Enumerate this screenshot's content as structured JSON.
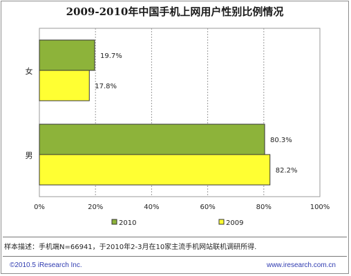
{
  "title": "2009-2010年中国手机上网用户性别比例情况",
  "note": "样本描述：手机端N=66941，于2010年2-3月在10家主流手机网站联机调研所得.",
  "copyright": "©2010.5 iResearch Inc.",
  "website": "www.iresearch.com.cn",
  "colors": {
    "s2010": "#8db33a",
    "s2009": "#ffff33",
    "outline": "#333333",
    "grid": "#999999"
  },
  "chart_data": {
    "type": "bar",
    "orientation": "horizontal",
    "categories": [
      "女",
      "男"
    ],
    "series": [
      {
        "name": "2010",
        "values": [
          19.7,
          80.3
        ],
        "labels": [
          "19.7%",
          "80.3%"
        ]
      },
      {
        "name": "2009",
        "values": [
          17.8,
          82.2
        ],
        "labels": [
          "17.8%",
          "82.2%"
        ]
      }
    ],
    "xlim": [
      0,
      100
    ],
    "xticks": [
      "0%",
      "20%",
      "40%",
      "60%",
      "80%",
      "100%"
    ],
    "grid": "vertical dashed",
    "legend": "bottom"
  }
}
